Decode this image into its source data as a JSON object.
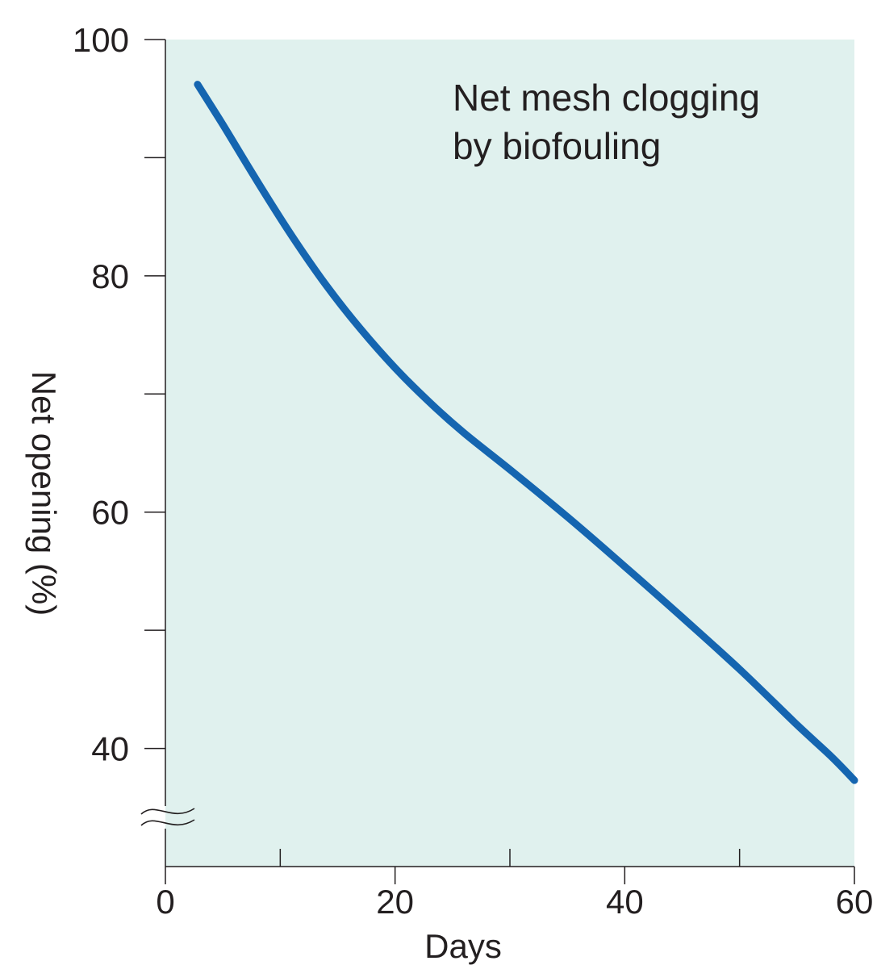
{
  "chart_data": {
    "type": "line",
    "title": "",
    "annotation": [
      "Net mesh clogging",
      "by biofouling"
    ],
    "xlabel": "Days",
    "ylabel": "Net opening (%)",
    "xlim": [
      0,
      60
    ],
    "ylim": [
      30,
      100
    ],
    "axis_break": "y",
    "x_major_ticks": [
      0,
      20,
      40,
      60
    ],
    "x_minor_ticks": [
      10,
      30,
      50
    ],
    "y_major_ticks": [
      40,
      60,
      80,
      100
    ],
    "y_minor_ticks": [
      50,
      70,
      90
    ],
    "grid": false,
    "colors": {
      "line": "#1565b0",
      "plot_background": "#e0f1ee",
      "axis": "#231f20"
    },
    "series": [
      {
        "x": [
          2.8,
          5,
          8,
          11,
          14,
          17,
          20,
          23,
          26,
          30,
          35,
          40,
          45,
          50,
          55,
          58,
          60
        ],
        "y": [
          96.2,
          92.8,
          88,
          83.4,
          79.2,
          75.5,
          72.2,
          69.3,
          66.7,
          63.6,
          59.6,
          55.4,
          51.1,
          46.7,
          42,
          39.3,
          37.3
        ]
      }
    ]
  }
}
